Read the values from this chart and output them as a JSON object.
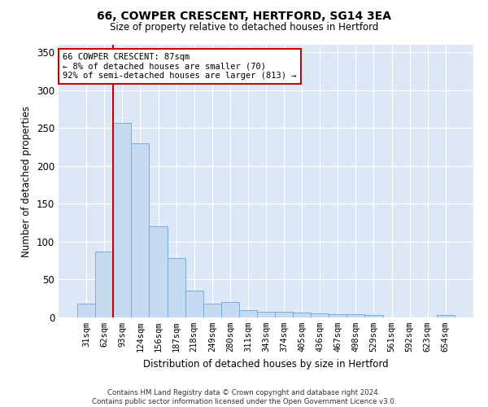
{
  "title": "66, COWPER CRESCENT, HERTFORD, SG14 3EA",
  "subtitle": "Size of property relative to detached houses in Hertford",
  "xlabel": "Distribution of detached houses by size in Hertford",
  "ylabel": "Number of detached properties",
  "categories": [
    "31sqm",
    "62sqm",
    "93sqm",
    "124sqm",
    "156sqm",
    "187sqm",
    "218sqm",
    "249sqm",
    "280sqm",
    "311sqm",
    "343sqm",
    "374sqm",
    "405sqm",
    "436sqm",
    "467sqm",
    "498sqm",
    "529sqm",
    "561sqm",
    "592sqm",
    "623sqm",
    "654sqm"
  ],
  "values": [
    18,
    87,
    257,
    230,
    120,
    78,
    35,
    18,
    20,
    10,
    8,
    8,
    6,
    5,
    4,
    4,
    3,
    0,
    0,
    0,
    3
  ],
  "bar_color": "#c5d9f0",
  "bar_edge_color": "#7aadd4",
  "property_line_x": 2,
  "annotation_text": "66 COWPER CRESCENT: 87sqm\n← 8% of detached houses are smaller (70)\n92% of semi-detached houses are larger (813) →",
  "annotation_box_color": "#ffffff",
  "annotation_border_color": "#cc0000",
  "vline_color": "#cc0000",
  "background_color": "#dce8f5",
  "grid_color": "#ffffff",
  "fig_background": "#ffffff",
  "ylim": [
    0,
    360
  ],
  "yticks": [
    0,
    50,
    100,
    150,
    200,
    250,
    300,
    350
  ],
  "footer": "Contains HM Land Registry data © Crown copyright and database right 2024.\nContains public sector information licensed under the Open Government Licence v3.0."
}
